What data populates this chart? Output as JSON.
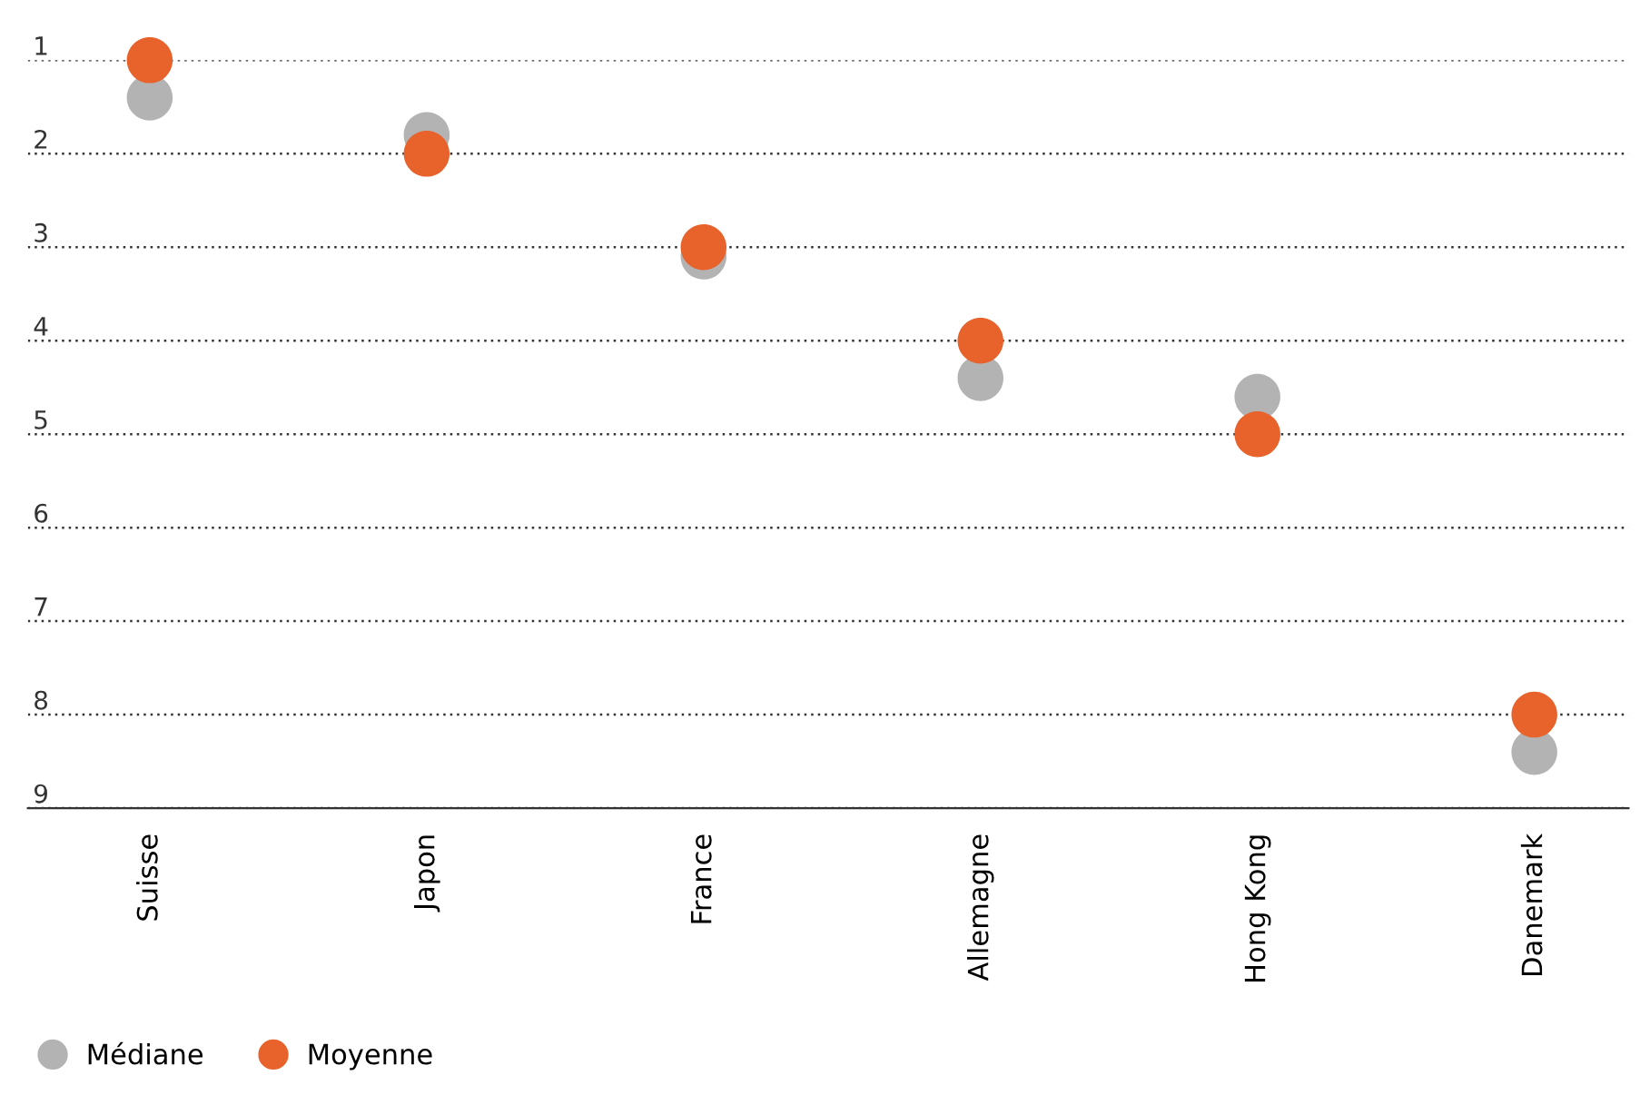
{
  "chart_data": {
    "type": "scatter",
    "categories": [
      "Suisse",
      "Japon",
      "France",
      "Allemagne",
      "Hong Kong",
      "Danemark"
    ],
    "series": [
      {
        "name": "Médiane",
        "color": "#b3b3b3",
        "values": [
          1.4,
          1.8,
          3.1,
          4.4,
          4.6,
          8.4
        ]
      },
      {
        "name": "Moyenne",
        "color": "#e8622c",
        "values": [
          1.0,
          2.0,
          3.0,
          4.0,
          5.0,
          8.0
        ]
      }
    ],
    "ylim": [
      9,
      1
    ],
    "yticks": [
      1,
      2,
      3,
      4,
      5,
      6,
      7,
      8,
      9
    ],
    "grid": "y",
    "legend": "bottom left",
    "marker": "circle"
  }
}
